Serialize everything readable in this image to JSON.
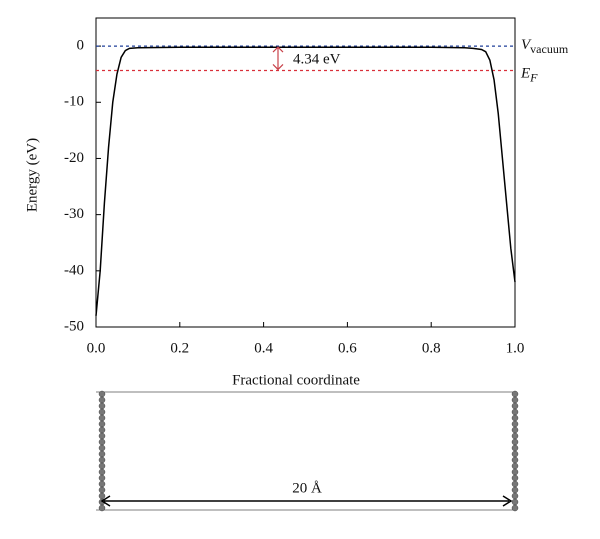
{
  "chart_data": {
    "type": "line",
    "x_label": "Fractional coordinate",
    "y_label": "Energy (eV)",
    "x": [
      0,
      0.01,
      0.02,
      0.03,
      0.04,
      0.05,
      0.06,
      0.07,
      0.08,
      0.1,
      0.2,
      0.3,
      0.4,
      0.5,
      0.6,
      0.7,
      0.8,
      0.88,
      0.9,
      0.92,
      0.93,
      0.94,
      0.95,
      0.96,
      0.97,
      0.98,
      0.99,
      1.0
    ],
    "series": [
      {
        "color": "#000000",
        "values": [
          -48,
          -40,
          -28,
          -18,
          -10,
          -5,
          -2,
          -0.8,
          -0.4,
          -0.3,
          -0.2,
          -0.2,
          -0.2,
          -0.2,
          -0.2,
          -0.2,
          -0.2,
          -0.3,
          -0.4,
          -0.6,
          -1,
          -2.5,
          -6,
          -12,
          -20,
          -28,
          -36,
          -42
        ]
      }
    ],
    "reference_lines": [
      {
        "value": 0,
        "color": "#1f3f9a",
        "label": "V",
        "label_sub": "vacuum"
      },
      {
        "value": -4.34,
        "color": "#d9303a",
        "label": "E",
        "label_sub": "F"
      }
    ],
    "annotation": {
      "text": "4.34 eV",
      "color": "#c8424a"
    },
    "xlim": [
      0,
      1
    ],
    "xticks": [
      {
        "value": 0,
        "label": "0.0"
      },
      0.2,
      0.4,
      0.6,
      0.8,
      {
        "value": 1,
        "label": "1.0"
      }
    ],
    "ylim": [
      -50,
      5
    ],
    "yticks": [
      -50,
      -40,
      -30,
      -20,
      -10,
      0
    ]
  },
  "structure": {
    "label": "20 Å"
  }
}
